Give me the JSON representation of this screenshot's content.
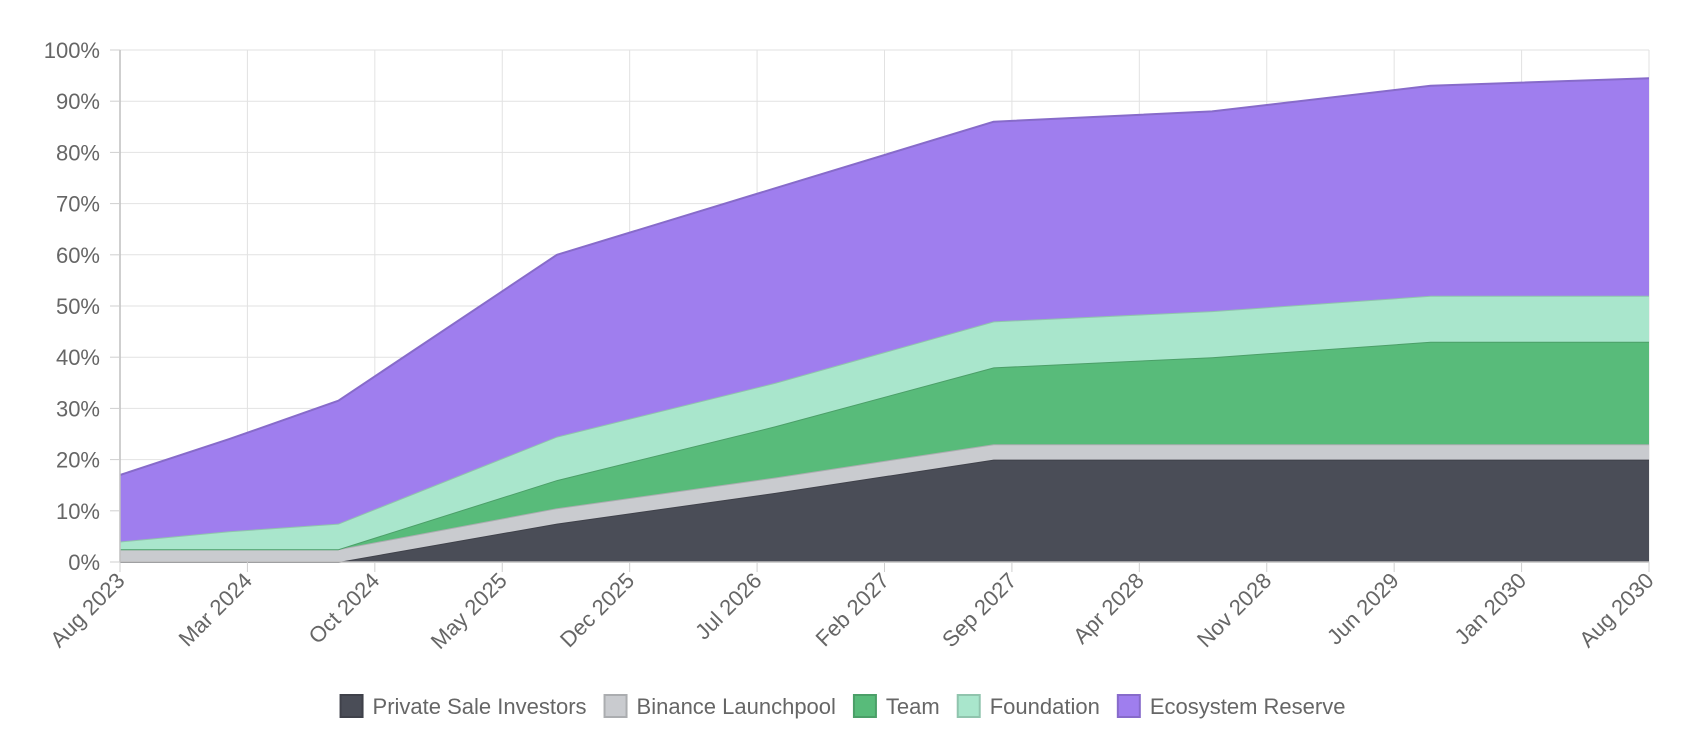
{
  "chart_data": {
    "type": "area",
    "stacked": true,
    "x": [
      "Aug 2023",
      "Mar 2024",
      "Oct 2024",
      "May 2025",
      "Dec 2025",
      "Jul 2026",
      "Feb 2027",
      "Sep 2027",
      "Apr 2028",
      "Nov 2028",
      "Jun 2029",
      "Jan 2030",
      "Aug 2030"
    ],
    "x_ticks": [
      "Aug 2023",
      "Mar 2024",
      "Oct 2024",
      "May 2025",
      "Dec 2025",
      "Jul 2026",
      "Feb 2027",
      "Sep 2027",
      "Apr 2028",
      "Nov 2028",
      "Jun 2029",
      "Jan 2030",
      "Aug 2030"
    ],
    "y_ticks": [
      "0%",
      "10%",
      "20%",
      "30%",
      "40%",
      "50%",
      "60%",
      "70%",
      "80%",
      "90%",
      "100%"
    ],
    "ylim": [
      0,
      100
    ],
    "y_unit": "%",
    "grid": true,
    "legend_position": "bottom",
    "series": [
      {
        "name": "Private Sale Investors",
        "color": "#4a4d57",
        "points": [
          [
            "Aug 2023",
            0
          ],
          [
            "Feb 2024",
            0
          ],
          [
            "Aug 2024",
            0
          ],
          [
            "Aug 2025",
            7.5
          ],
          [
            "Aug 2026",
            13.5
          ],
          [
            "Aug 2027",
            20
          ],
          [
            "Aug 2028",
            20
          ],
          [
            "Aug 2029",
            20
          ],
          [
            "Aug 2030",
            20
          ]
        ]
      },
      {
        "name": "Binance Launchpool",
        "color": "#c9cbcf",
        "points": [
          [
            "Aug 2023",
            2.5
          ],
          [
            "Feb 2024",
            2.5
          ],
          [
            "Aug 2024",
            2.5
          ],
          [
            "Aug 2025",
            3
          ],
          [
            "Aug 2026",
            3
          ],
          [
            "Aug 2027",
            3
          ],
          [
            "Aug 2028",
            3
          ],
          [
            "Aug 2029",
            3
          ],
          [
            "Aug 2030",
            3
          ]
        ]
      },
      {
        "name": "Team",
        "color": "#58bb7a",
        "points": [
          [
            "Aug 2023",
            0
          ],
          [
            "Feb 2024",
            0
          ],
          [
            "Aug 2024",
            0
          ],
          [
            "Aug 2025",
            5.5
          ],
          [
            "Aug 2026",
            10
          ],
          [
            "Aug 2027",
            15
          ],
          [
            "Aug 2028",
            17
          ],
          [
            "Aug 2029",
            20
          ],
          [
            "Aug 2030",
            20
          ]
        ]
      },
      {
        "name": "Foundation",
        "color": "#a9e6cc",
        "points": [
          [
            "Aug 2023",
            1.5
          ],
          [
            "Feb 2024",
            3.5
          ],
          [
            "Aug 2024",
            5
          ],
          [
            "Aug 2025",
            8.5
          ],
          [
            "Aug 2026",
            8.5
          ],
          [
            "Aug 2027",
            9
          ],
          [
            "Aug 2028",
            9
          ],
          [
            "Aug 2029",
            9
          ],
          [
            "Aug 2030",
            9
          ]
        ]
      },
      {
        "name": "Ecosystem Reserve",
        "color": "#9f7eee",
        "points": [
          [
            "Aug 2023",
            13
          ],
          [
            "Feb 2024",
            18
          ],
          [
            "Aug 2024",
            24
          ],
          [
            "Aug 2025",
            35.5
          ],
          [
            "Aug 2026",
            38
          ],
          [
            "Aug 2027",
            39
          ],
          [
            "Aug 2028",
            39
          ],
          [
            "Aug 2029",
            41
          ],
          [
            "Aug 2030",
            42.5
          ]
        ]
      }
    ]
  }
}
